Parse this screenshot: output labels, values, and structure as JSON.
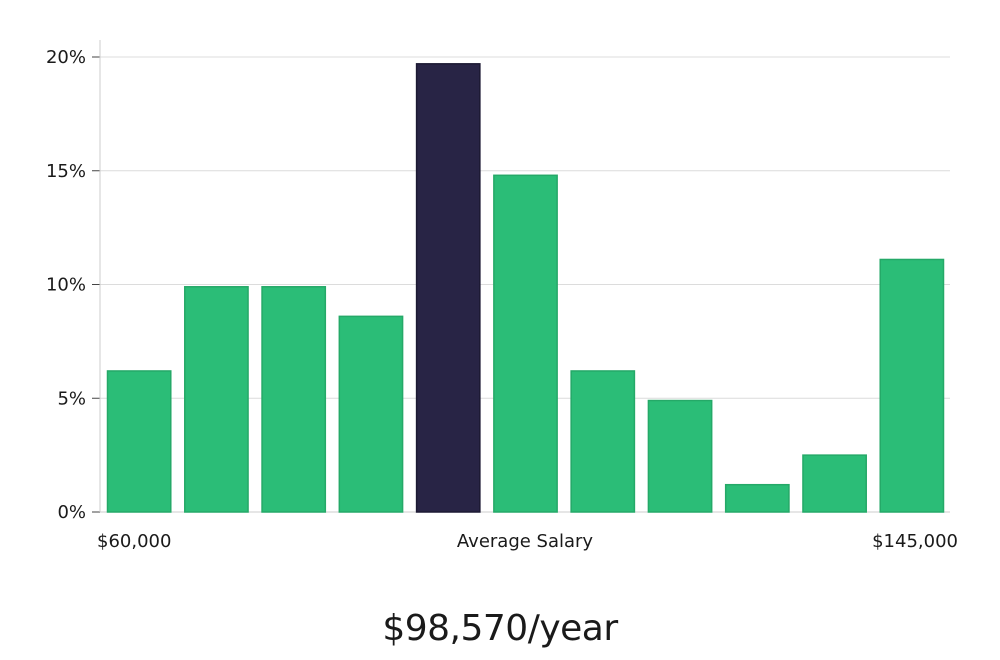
{
  "chart_data": {
    "type": "bar",
    "values": [
      6.2,
      9.9,
      9.9,
      8.6,
      19.7,
      14.8,
      6.2,
      4.9,
      1.2,
      2.5,
      11.1
    ],
    "highlight_index": 4,
    "ylim": [
      0,
      20
    ],
    "y_ticks": [
      0,
      5,
      10,
      15,
      20
    ],
    "y_tick_labels": [
      "0%",
      "5%",
      "10%",
      "15%",
      "20%"
    ],
    "x_left_label": "$60,000",
    "x_center_label": "Average Salary",
    "x_right_label": "$145,000",
    "grid": true,
    "colors": {
      "bar": "#2bbd77",
      "bar_edge": "#25a968",
      "highlight": "#282445",
      "grid": "#dcdcdc",
      "axis": "#cccccc"
    }
  },
  "summary": {
    "salary_text": "$98,570/year"
  }
}
